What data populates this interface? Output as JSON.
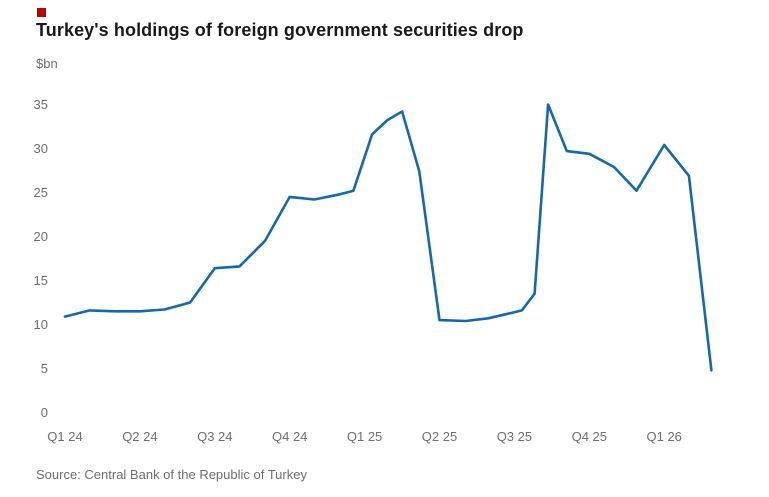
{
  "accent": {
    "color": "#c00000"
  },
  "chart_data": {
    "type": "line",
    "title": "Turkey's holdings of foreign government securities drop",
    "unit_label": "$bn",
    "line_color": "#1268b1",
    "grid": false,
    "legend": false,
    "ylim": [
      0,
      36.5
    ],
    "y_ticks": [
      0,
      5,
      10,
      15,
      20,
      25,
      30,
      35
    ],
    "x_tick_labels": [
      "Q1 24",
      "Q2 24",
      "Q3 24",
      "Q4 24",
      "Q1 25",
      "Q2 25",
      "Q3 25",
      "Q4 25",
      "Q1 26"
    ],
    "x_unit": "quarters since Q1 2024",
    "xlim": [
      0,
      9.1
    ],
    "series": [
      {
        "name": "Turkey's holdings of foreign government securities ($bn)",
        "points": [
          [
            0.0,
            10.9
          ],
          [
            0.33,
            11.6
          ],
          [
            0.67,
            11.5
          ],
          [
            1.0,
            11.5
          ],
          [
            1.33,
            11.7
          ],
          [
            1.67,
            12.5
          ],
          [
            2.0,
            16.4
          ],
          [
            2.33,
            16.6
          ],
          [
            2.67,
            19.5
          ],
          [
            3.0,
            24.5
          ],
          [
            3.33,
            24.2
          ],
          [
            3.67,
            24.8
          ],
          [
            3.85,
            25.2
          ],
          [
            4.1,
            31.6
          ],
          [
            4.3,
            33.2
          ],
          [
            4.5,
            34.2
          ],
          [
            4.73,
            27.4
          ],
          [
            5.0,
            10.5
          ],
          [
            5.35,
            10.4
          ],
          [
            5.65,
            10.7
          ],
          [
            5.95,
            11.3
          ],
          [
            6.1,
            11.6
          ],
          [
            6.27,
            13.5
          ],
          [
            6.45,
            35.0
          ],
          [
            6.7,
            29.7
          ],
          [
            7.0,
            29.4
          ],
          [
            7.33,
            27.9
          ],
          [
            7.63,
            25.2
          ],
          [
            8.0,
            30.4
          ],
          [
            8.33,
            26.9
          ],
          [
            8.63,
            4.8
          ]
        ]
      }
    ]
  },
  "footer": {
    "source": "Source: Central Bank of the Republic of Turkey"
  }
}
